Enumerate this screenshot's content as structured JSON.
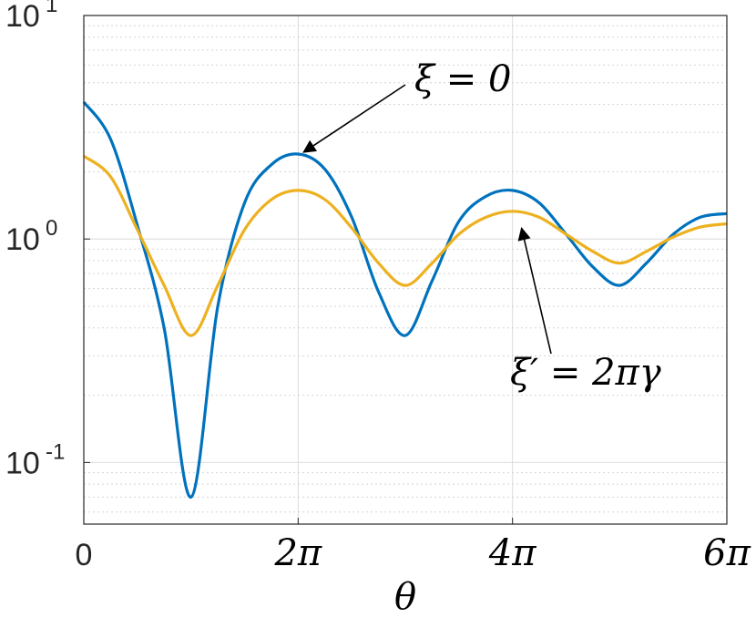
{
  "chart_data": {
    "type": "line",
    "xlabel": "θ",
    "xlim": [
      0,
      18.8496
    ],
    "ylim": [
      0.053,
      10
    ],
    "y_scale": "log",
    "grid": true,
    "x_ticks": [
      {
        "value": 0,
        "label": "0"
      },
      {
        "value": 6.2832,
        "label": "2π"
      },
      {
        "value": 12.5664,
        "label": "4π"
      },
      {
        "value": 18.8496,
        "label": "6π"
      }
    ],
    "y_ticks": [
      {
        "value": 0.1,
        "base": "10",
        "exp": "-1"
      },
      {
        "value": 1,
        "base": "10",
        "exp": "0"
      },
      {
        "value": 10,
        "base": "10",
        "exp": "1"
      }
    ],
    "colors": {
      "blue": "#0072bd",
      "yellow": "#edb120"
    },
    "series": [
      {
        "color": "#0072bd",
        "x": [
          0,
          0.785,
          1.571,
          2.356,
          3.142,
          3.927,
          4.712,
          5.498,
          6.283,
          7.069,
          7.854,
          8.639,
          9.425,
          10.21,
          10.996,
          11.781,
          12.566,
          13.352,
          14.137,
          14.923,
          15.708,
          16.493,
          17.279,
          18.064,
          18.85
        ],
        "y": [
          4.1,
          2.8,
          1.15,
          0.4,
          0.07,
          0.5,
          1.45,
          2.15,
          2.4,
          2.05,
          1.25,
          0.58,
          0.37,
          0.65,
          1.2,
          1.55,
          1.65,
          1.45,
          1.05,
          0.75,
          0.62,
          0.78,
          1.05,
          1.25,
          1.3
        ]
      },
      {
        "color": "#edb120",
        "x": [
          0,
          0.785,
          1.571,
          2.356,
          3.142,
          3.927,
          4.712,
          5.498,
          6.283,
          7.069,
          7.854,
          8.639,
          9.425,
          10.21,
          10.996,
          11.781,
          12.566,
          13.352,
          14.137,
          14.923,
          15.708,
          16.493,
          17.279,
          18.064,
          18.85
        ],
        "y": [
          2.35,
          1.9,
          1.1,
          0.62,
          0.37,
          0.62,
          1.1,
          1.5,
          1.65,
          1.5,
          1.12,
          0.78,
          0.62,
          0.78,
          1.05,
          1.25,
          1.33,
          1.25,
          1.05,
          0.88,
          0.78,
          0.88,
          1.02,
          1.13,
          1.17
        ]
      }
    ],
    "annotations": [
      {
        "text": "ξ = 0",
        "target_x": 6.283,
        "target_y": 2.4
      },
      {
        "text": "ξ′ = 2πγ",
        "target_x": 12.566,
        "target_y": 1.25
      }
    ]
  }
}
